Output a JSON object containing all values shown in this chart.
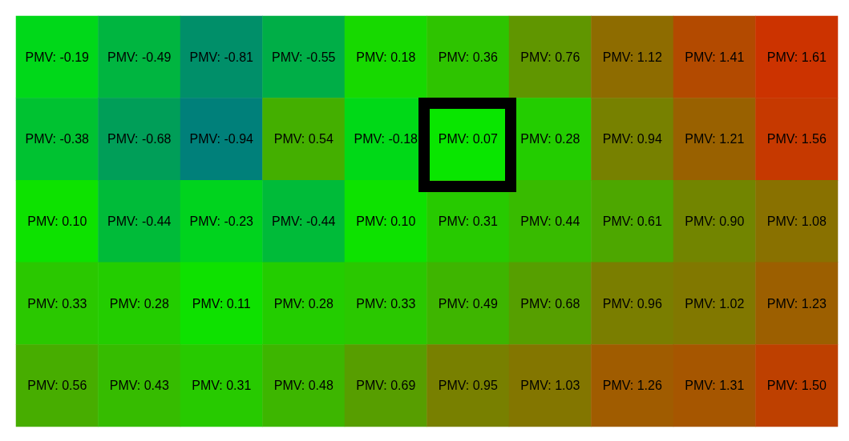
{
  "chart_data": {
    "type": "heatmap",
    "categories": [
      null,
      null,
      null,
      null,
      null,
      null,
      null,
      null,
      null,
      null
    ],
    "y_categories": [
      null,
      null,
      null,
      null,
      null
    ],
    "cells": [
      [
        -0.19,
        -0.49,
        -0.81,
        -0.55,
        0.18,
        0.36,
        0.76,
        1.12,
        1.41,
        1.61
      ],
      [
        -0.38,
        -0.68,
        -0.94,
        0.54,
        -0.18,
        0.07,
        0.28,
        0.94,
        1.21,
        1.56
      ],
      [
        0.1,
        -0.44,
        -0.23,
        -0.44,
        0.1,
        0.31,
        0.44,
        0.61,
        0.9,
        1.08
      ],
      [
        0.33,
        0.28,
        0.11,
        0.28,
        0.33,
        0.49,
        0.68,
        0.96,
        1.02,
        1.23
      ],
      [
        0.56,
        0.43,
        0.31,
        0.48,
        0.69,
        0.95,
        1.03,
        1.26,
        1.31,
        1.5
      ]
    ],
    "cell_labels": [
      [
        "PMV: -0.19",
        "PMV: -0.49",
        "PMV: -0.81",
        "PMV: -0.55",
        "PMV: 0.18",
        "PMV: 0.36",
        "PMV: 0.76",
        "PMV: 1.12",
        "PMV: 1.41",
        "PMV: 1.61"
      ],
      [
        "PMV: -0.38",
        "PMV: -0.68",
        "PMV: -0.94",
        "PMV: 0.54",
        "PMV: -0.18",
        "PMV: 0.07",
        "PMV: 0.28",
        "PMV: 0.94",
        "PMV: 1.21",
        "PMV: 1.56"
      ],
      [
        "PMV: 0.10",
        "PMV: -0.44",
        "PMV: -0.23",
        "PMV: -0.44",
        "PMV: 0.10",
        "PMV: 0.31",
        "PMV: 0.44",
        "PMV: 0.61",
        "PMV: 0.90",
        "PMV: 1.08"
      ],
      [
        "PMV: 0.33",
        "PMV: 0.28",
        "PMV: 0.11",
        "PMV: 0.28",
        "PMV: 0.33",
        "PMV: 0.49",
        "PMV: 0.68",
        "PMV: 0.96",
        "PMV: 1.02",
        "PMV: 1.23"
      ],
      [
        "PMV: 0.56",
        "PMV: 0.43",
        "PMV: 0.31",
        "PMV: 0.48",
        "PMV: 0.69",
        "PMV: 0.95",
        "PMV: 1.03",
        "PMV: 1.26",
        "PMV: 1.31",
        "PMV: 1.50"
      ]
    ]
  }
}
